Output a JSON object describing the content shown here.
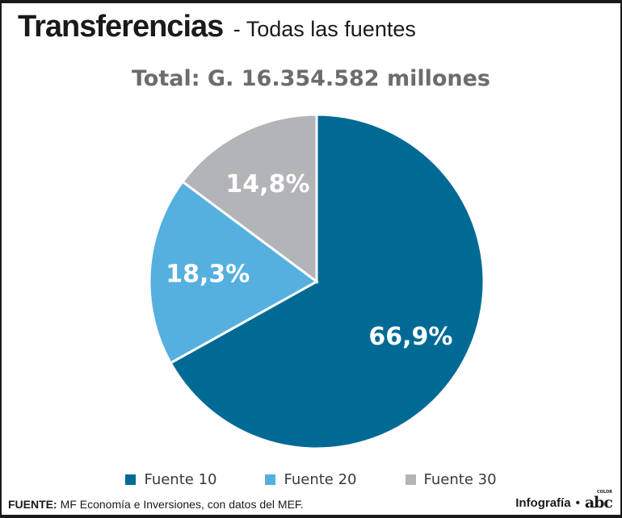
{
  "header": {
    "title": "Transferencias",
    "subtitle": "- Todas las fuentes",
    "total": "Total: G. 16.354.582 millones"
  },
  "chart_data": {
    "type": "pie",
    "title": "Total: G. 16.354.582 millones",
    "slices": [
      {
        "name": "Fuente 10",
        "value": 66.9,
        "label": "66,9%",
        "color": "#006a94"
      },
      {
        "name": "Fuente 20",
        "value": 18.3,
        "label": "18,3%",
        "color": "#55b0e0"
      },
      {
        "name": "Fuente 30",
        "value": 14.8,
        "label": "14,8%",
        "color": "#b3b4b8"
      }
    ],
    "start": "12 o'clock",
    "direction": "clockwise",
    "legend_position": "bottom"
  },
  "legend": {
    "items": [
      {
        "label": "Fuente 10",
        "color": "#006a94"
      },
      {
        "label": "Fuente 20",
        "color": "#55b0e0"
      },
      {
        "label": "Fuente 30",
        "color": "#b3b4b8"
      }
    ]
  },
  "footer": {
    "source_label": "FUENTE:",
    "source_text": "MF Economía e Inversiones, con datos del MEF.",
    "credit": "Infografía",
    "logo_text": "abc",
    "logo_small": "COLOR"
  }
}
